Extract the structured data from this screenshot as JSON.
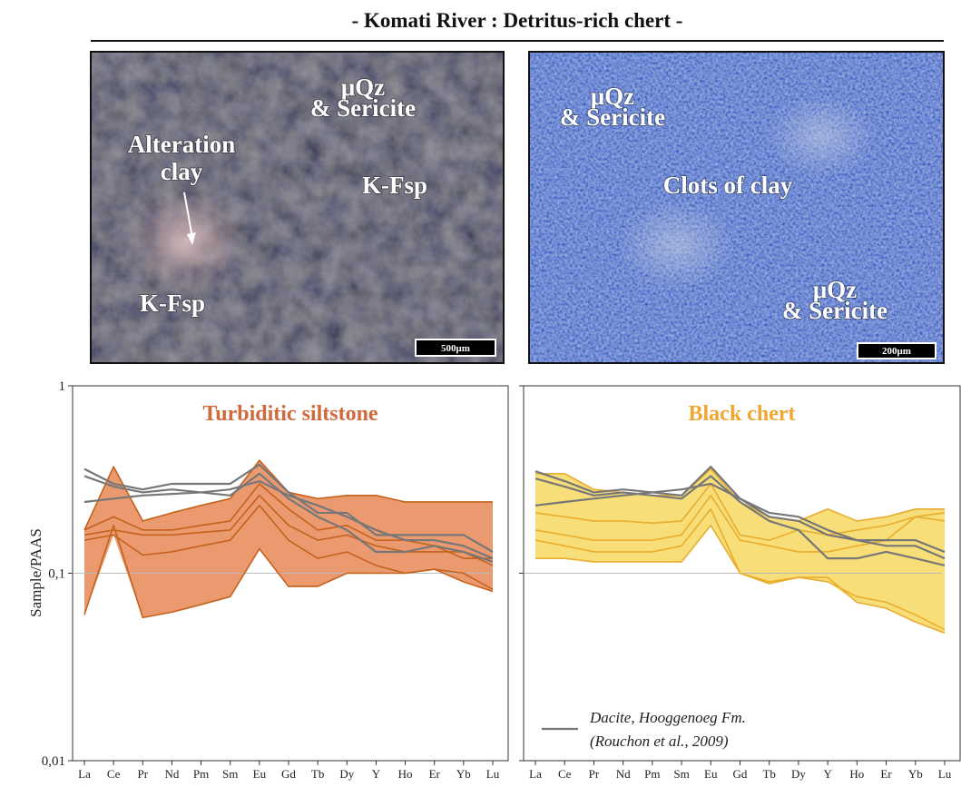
{
  "title": "- Komati River : Detritus-rich chert -",
  "photos": [
    {
      "labels": [
        "μQz",
        "& Sericite",
        "Alteration",
        "clay",
        "K-Fsp",
        "K-Fsp"
      ],
      "scale_bar": "500μm"
    },
    {
      "labels": [
        "μQz",
        "& Sericite",
        "Clots of clay",
        "μQz",
        "& Sericite"
      ],
      "scale_bar": "200μm"
    }
  ],
  "chart_data": [
    {
      "type": "line",
      "title": "Turbiditic siltstone",
      "title_color": "#d0693c",
      "ylabel": "Sample/PAAS",
      "categories": [
        "La",
        "Ce",
        "Pr",
        "Nd",
        "Pm",
        "Sm",
        "Eu",
        "Gd",
        "Tb",
        "Dy",
        "Y",
        "Ho",
        "Er",
        "Yb",
        "Lu"
      ],
      "log_y": true,
      "ylim": [
        0.01,
        1
      ],
      "yticks": [
        {
          "value": 0.01,
          "label": "0,01"
        },
        {
          "value": 0.1,
          "label": "0,1"
        },
        1
      ],
      "hline": 0.1,
      "envelope_color": "#eb9a70",
      "series": [
        {
          "color": "#c4621c",
          "values": [
            0.17,
            0.37,
            0.19,
            0.21,
            0.23,
            0.25,
            0.4,
            0.27,
            0.25,
            0.26,
            0.26,
            0.24,
            0.24,
            0.24,
            0.24
          ]
        },
        {
          "color": "#c4621c",
          "values": [
            0.06,
            0.18,
            0.058,
            0.062,
            0.068,
            0.075,
            0.135,
            0.085,
            0.085,
            0.1,
            0.1,
            0.1,
            0.105,
            0.09,
            0.08
          ]
        },
        {
          "color": "#c4621c",
          "values": [
            0.17,
            0.2,
            0.17,
            0.17,
            0.18,
            0.19,
            0.3,
            0.22,
            0.17,
            0.18,
            0.15,
            0.15,
            0.14,
            0.12,
            0.12
          ]
        },
        {
          "color": "#c4621c",
          "values": [
            0.16,
            0.17,
            0.16,
            0.16,
            0.165,
            0.17,
            0.26,
            0.18,
            0.15,
            0.16,
            0.14,
            0.13,
            0.13,
            0.13,
            0.11
          ]
        },
        {
          "color": "#c4621c",
          "values": [
            0.15,
            0.16,
            0.125,
            0.13,
            0.14,
            0.15,
            0.23,
            0.15,
            0.12,
            0.13,
            0.11,
            0.1,
            0.105,
            0.1,
            0.082
          ]
        },
        {
          "color": "#777777",
          "values": [
            0.36,
            0.3,
            0.28,
            0.3,
            0.3,
            0.3,
            0.38,
            0.27,
            0.21,
            0.21,
            0.16,
            0.16,
            0.16,
            0.16,
            0.13
          ],
          "reference": true
        },
        {
          "color": "#777777",
          "values": [
            0.33,
            0.29,
            0.27,
            0.28,
            0.27,
            0.26,
            0.34,
            0.25,
            0.2,
            0.17,
            0.13,
            0.13,
            0.14,
            0.13,
            0.115
          ],
          "reference": true
        },
        {
          "color": "#777777",
          "values": [
            0.24,
            0.25,
            0.26,
            0.265,
            0.27,
            0.28,
            0.31,
            0.26,
            0.23,
            0.2,
            0.17,
            0.15,
            0.15,
            0.14,
            0.12
          ],
          "reference": true
        }
      ]
    },
    {
      "type": "line",
      "title": "Black chert",
      "title_color": "#f0a630",
      "categories": [
        "La",
        "Ce",
        "Pr",
        "Nd",
        "Pm",
        "Sm",
        "Eu",
        "Gd",
        "Tb",
        "Dy",
        "Y",
        "Ho",
        "Er",
        "Yb",
        "Lu"
      ],
      "log_y": true,
      "ylim": [
        0.01,
        1
      ],
      "yticks": [
        0.01,
        0.1,
        1
      ],
      "hline": 0.1,
      "envelope_color": "#f7de78",
      "legend": {
        "color": "#777777",
        "lines": [
          "Dacite, Hooggenoeg Fm.",
          "(Rouchon et al., 2009)"
        ]
      },
      "series": [
        {
          "color": "#e8ad2e",
          "values": [
            0.34,
            0.34,
            0.28,
            0.27,
            0.26,
            0.26,
            0.36,
            0.24,
            0.2,
            0.19,
            0.22,
            0.19,
            0.2,
            0.22,
            0.22
          ]
        },
        {
          "color": "#e8ad2e",
          "values": [
            0.12,
            0.12,
            0.115,
            0.115,
            0.115,
            0.115,
            0.18,
            0.1,
            0.09,
            0.095,
            0.095,
            0.07,
            0.065,
            0.055,
            0.048
          ]
        },
        {
          "color": "#e8ad2e",
          "values": [
            0.21,
            0.2,
            0.19,
            0.19,
            0.185,
            0.19,
            0.3,
            0.16,
            0.15,
            0.17,
            0.16,
            0.17,
            0.18,
            0.2,
            0.21
          ]
        },
        {
          "color": "#e8ad2e",
          "values": [
            0.17,
            0.16,
            0.15,
            0.15,
            0.15,
            0.16,
            0.26,
            0.15,
            0.14,
            0.13,
            0.13,
            0.14,
            0.15,
            0.2,
            0.19
          ]
        },
        {
          "color": "#e8ad2e",
          "values": [
            0.15,
            0.14,
            0.13,
            0.13,
            0.13,
            0.14,
            0.22,
            0.1,
            0.088,
            0.095,
            0.09,
            0.075,
            0.07,
            0.06,
            0.05
          ]
        },
        {
          "color": "#777777",
          "values": [
            0.35,
            0.31,
            0.27,
            0.28,
            0.27,
            0.26,
            0.37,
            0.25,
            0.2,
            0.19,
            0.16,
            0.15,
            0.15,
            0.15,
            0.13
          ],
          "reference": true
        },
        {
          "color": "#777777",
          "values": [
            0.32,
            0.29,
            0.26,
            0.27,
            0.26,
            0.25,
            0.33,
            0.24,
            0.19,
            0.17,
            0.12,
            0.12,
            0.13,
            0.12,
            0.11
          ],
          "reference": true
        },
        {
          "color": "#777777",
          "values": [
            0.23,
            0.24,
            0.25,
            0.26,
            0.27,
            0.28,
            0.3,
            0.25,
            0.21,
            0.2,
            0.17,
            0.15,
            0.14,
            0.14,
            0.12
          ],
          "reference": true
        }
      ]
    }
  ]
}
